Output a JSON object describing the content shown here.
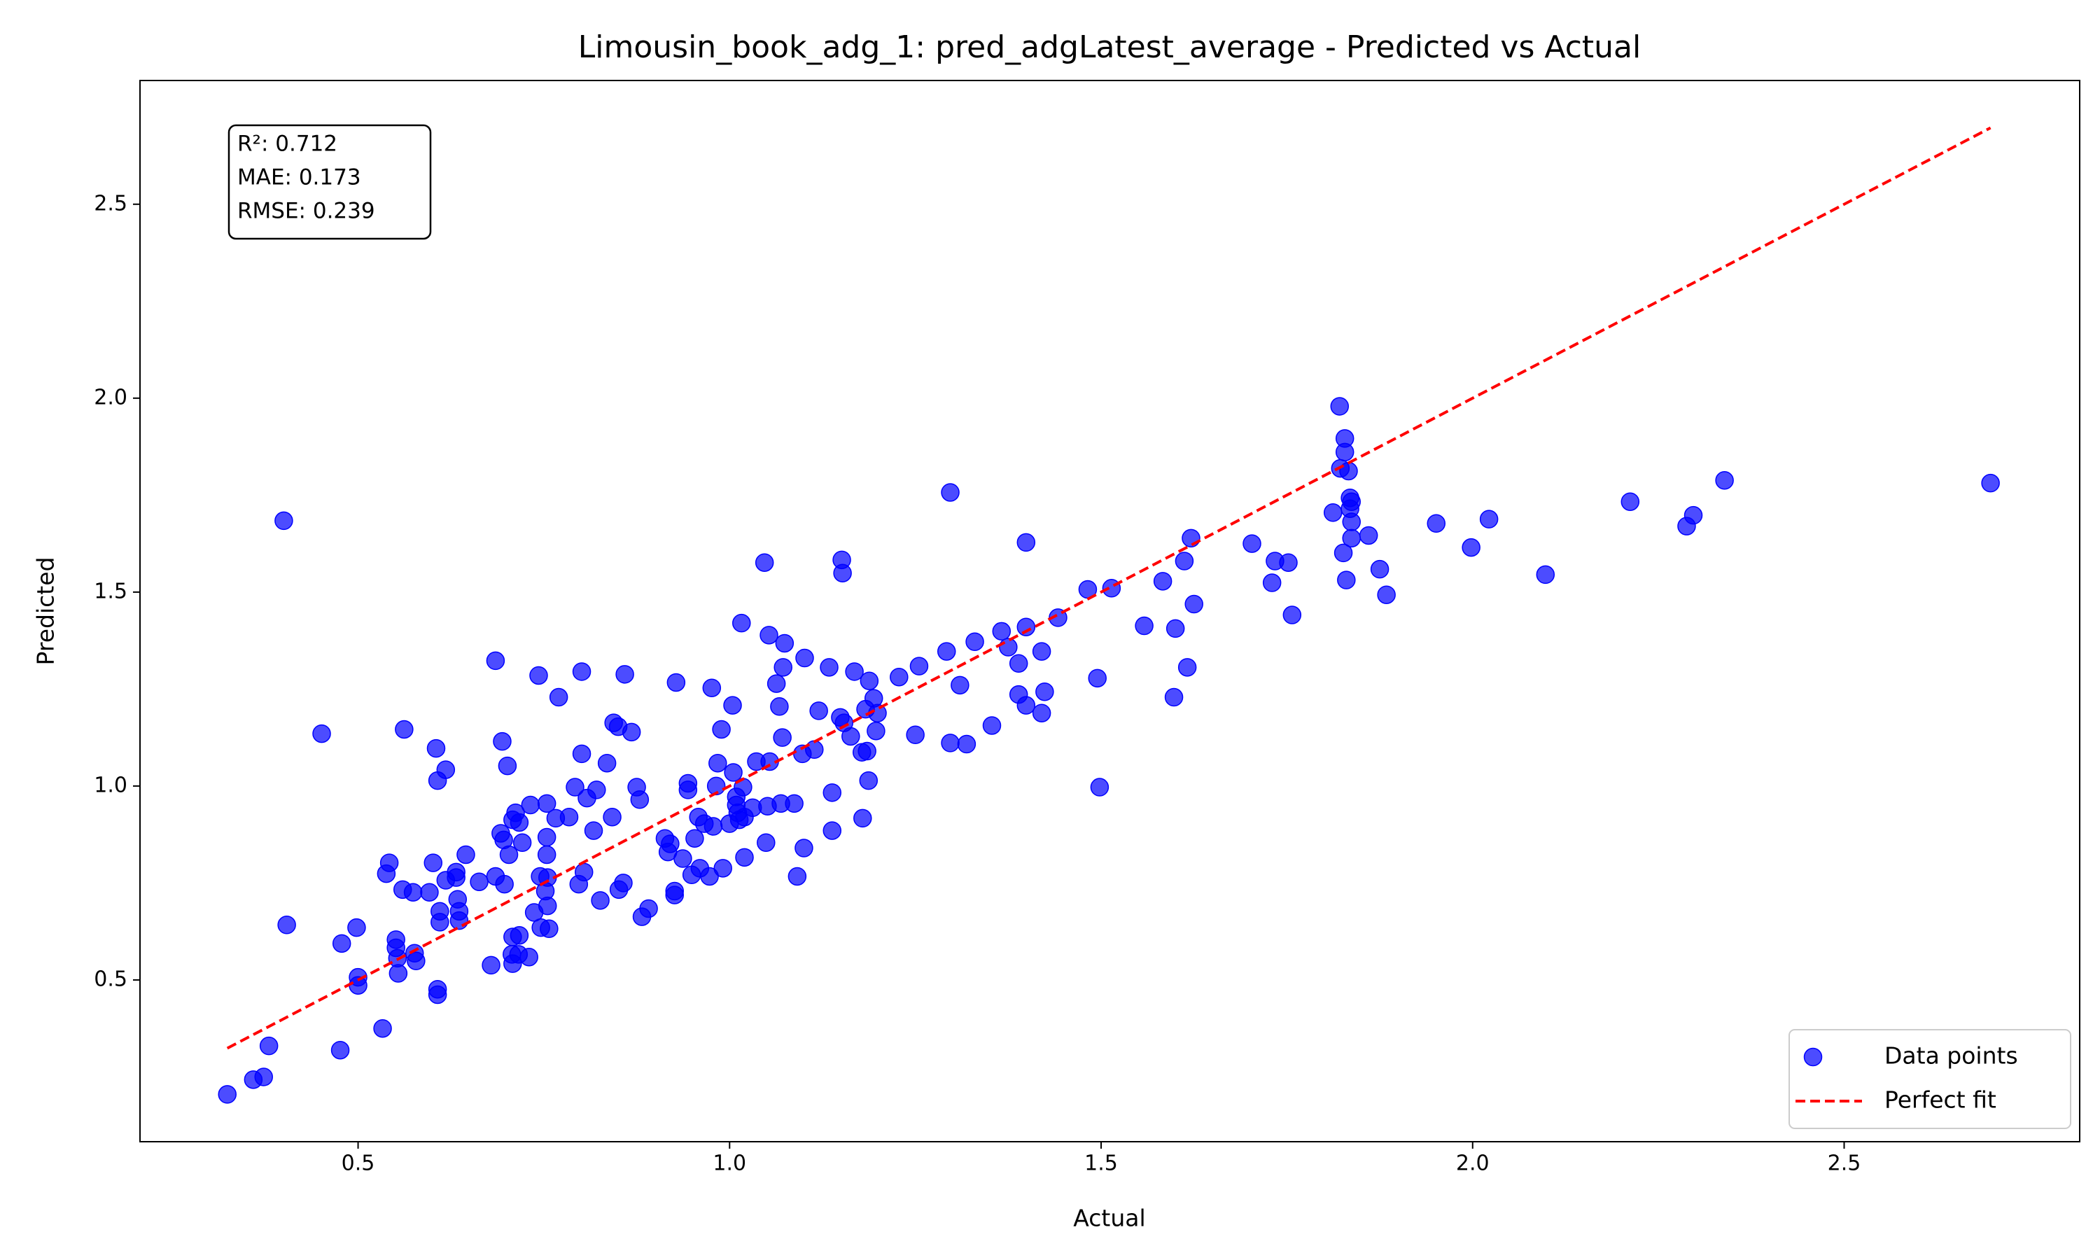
{
  "chart_data": {
    "type": "scatter",
    "title": "Limousin_book_adg_1: pred_adgLatest_average - Predicted vs Actual",
    "xlabel": "Actual",
    "ylabel": "Predicted",
    "annotations": [
      "R²: 0.712",
      "MAE: 0.173",
      "RMSE: 0.239"
    ],
    "xlim": [
      0.2065,
      2.817
    ],
    "ylim": [
      0.083,
      2.819
    ],
    "xticks": [
      0.5,
      {
        "value": 1,
        "label": "1.0"
      },
      1.5,
      {
        "value": 2,
        "label": "2.0"
      },
      2.5
    ],
    "yticks": [
      0.5,
      {
        "value": 1,
        "label": "1.0"
      },
      1.5,
      {
        "value": 2,
        "label": "2.0"
      },
      2.5
    ],
    "grid": false,
    "legend": "lower right",
    "series": [
      {
        "name": "Data points",
        "type": "scatter",
        "color": "#0000ff",
        "x": [
          0.324,
          0.359,
          0.373,
          0.38,
          0.4,
          0.404,
          0.451,
          0.476,
          0.478,
          0.498,
          0.5,
          0.5,
          0.533,
          0.538,
          0.542,
          0.551,
          0.551,
          0.553,
          0.554,
          0.56,
          0.562,
          0.574,
          0.576,
          0.578,
          0.596,
          0.601,
          0.605,
          0.607,
          0.607,
          0.607,
          0.61,
          0.61,
          0.618,
          0.618,
          0.632,
          0.632,
          0.634,
          0.636,
          0.636,
          0.645,
          0.663,
          0.679,
          0.685,
          0.685,
          0.692,
          0.694,
          0.696,
          0.697,
          0.701,
          0.703,
          0.707,
          0.708,
          0.708,
          0.708,
          0.712,
          0.716,
          0.717,
          0.717,
          0.721,
          0.73,
          0.732,
          0.737,
          0.743,
          0.745,
          0.746,
          0.752,
          0.754,
          0.754,
          0.754,
          0.755,
          0.755,
          0.757,
          0.766,
          0.77,
          0.784,
          0.792,
          0.797,
          0.801,
          0.801,
          0.804,
          0.808,
          0.817,
          0.821,
          0.826,
          0.835,
          0.842,
          0.844,
          0.85,
          0.851,
          0.857,
          0.859,
          0.868,
          0.875,
          0.879,
          0.882,
          0.891,
          0.913,
          0.917,
          0.92,
          0.926,
          0.926,
          0.928,
          0.937,
          0.944,
          0.944,
          0.949,
          0.953,
          0.958,
          0.96,
          0.966,
          0.973,
          0.976,
          0.978,
          0.982,
          0.984,
          0.989,
          0.991,
          1.0,
          1.004,
          1.005,
          1.009,
          1.009,
          1.011,
          1.013,
          1.016,
          1.018,
          1.02,
          1.02,
          1.031,
          1.036,
          1.047,
          1.049,
          1.051,
          1.053,
          1.054,
          1.063,
          1.067,
          1.069,
          1.071,
          1.072,
          1.074,
          1.087,
          1.091,
          1.098,
          1.1,
          1.101,
          1.114,
          1.12,
          1.134,
          1.138,
          1.138,
          1.149,
          1.151,
          1.152,
          1.154,
          1.163,
          1.168,
          1.178,
          1.179,
          1.183,
          1.185,
          1.187,
          1.188,
          1.194,
          1.197,
          1.199,
          1.228,
          1.25,
          1.255,
          1.292,
          1.297,
          1.297,
          1.31,
          1.319,
          1.33,
          1.353,
          1.366,
          1.375,
          1.389,
          1.389,
          1.399,
          1.399,
          1.399,
          1.42,
          1.42,
          1.424,
          1.442,
          1.482,
          1.495,
          1.498,
          1.514,
          1.558,
          1.583,
          1.598,
          1.6,
          1.612,
          1.616,
          1.621,
          1.625,
          1.703,
          1.73,
          1.734,
          1.752,
          1.757,
          1.812,
          1.821,
          1.822,
          1.826,
          1.828,
          1.828,
          1.83,
          1.833,
          1.835,
          1.835,
          1.837,
          1.837,
          1.837,
          1.86,
          1.875,
          1.884,
          1.951,
          1.998,
          2.022,
          2.098,
          2.212,
          2.288,
          2.297,
          2.339,
          2.697
        ],
        "values": [
          0.205,
          0.243,
          0.25,
          0.33,
          1.684,
          0.642,
          1.135,
          0.319,
          0.594,
          0.635,
          0.507,
          0.486,
          0.375,
          0.774,
          0.802,
          0.604,
          0.583,
          0.556,
          0.517,
          0.733,
          1.146,
          0.726,
          0.569,
          0.549,
          0.726,
          0.802,
          1.097,
          1.014,
          0.476,
          0.462,
          0.677,
          0.649,
          1.042,
          0.757,
          0.778,
          0.764,
          0.708,
          0.677,
          0.653,
          0.823,
          0.753,
          0.538,
          1.323,
          0.767,
          0.878,
          1.115,
          0.861,
          0.747,
          1.052,
          0.823,
          0.566,
          0.913,
          0.611,
          0.542,
          0.931,
          0.566,
          0.906,
          0.615,
          0.854,
          0.559,
          0.951,
          0.674,
          1.285,
          0.767,
          0.635,
          0.729,
          0.955,
          0.868,
          0.823,
          0.764,
          0.691,
          0.632,
          0.917,
          1.229,
          0.92,
          0.997,
          0.747,
          1.295,
          1.083,
          0.778,
          0.969,
          0.885,
          0.99,
          0.705,
          1.059,
          0.92,
          1.163,
          1.153,
          0.733,
          0.75,
          1.288,
          1.139,
          0.997,
          0.965,
          0.663,
          0.684,
          0.865,
          0.83,
          0.851,
          0.729,
          0.719,
          1.267,
          0.813,
          1.007,
          0.99,
          0.771,
          0.865,
          0.92,
          0.788,
          0.903,
          0.767,
          1.253,
          0.896,
          1.0,
          1.059,
          1.146,
          0.788,
          0.903,
          1.208,
          1.035,
          0.951,
          0.972,
          0.931,
          0.913,
          1.42,
          0.997,
          0.92,
          0.816,
          0.944,
          1.063,
          1.576,
          0.854,
          0.948,
          1.389,
          1.063,
          1.264,
          1.205,
          0.955,
          1.125,
          1.306,
          1.368,
          0.955,
          0.767,
          1.083,
          0.84,
          1.33,
          1.094,
          1.194,
          1.306,
          0.983,
          0.885,
          1.177,
          1.583,
          1.549,
          1.163,
          1.128,
          1.295,
          1.087,
          0.917,
          1.198,
          1.09,
          1.014,
          1.271,
          1.226,
          1.142,
          1.188,
          1.281,
          1.132,
          1.309,
          1.347,
          1.757,
          1.111,
          1.26,
          1.108,
          1.372,
          1.156,
          1.399,
          1.358,
          1.316,
          1.236,
          1.628,
          1.41,
          1.208,
          1.347,
          1.188,
          1.243,
          1.434,
          1.507,
          1.278,
          0.997,
          1.51,
          1.413,
          1.528,
          1.229,
          1.406,
          1.58,
          1.306,
          1.639,
          1.469,
          1.625,
          1.524,
          1.58,
          1.576,
          1.441,
          1.705,
          1.979,
          1.819,
          1.601,
          1.896,
          1.861,
          1.531,
          1.812,
          1.743,
          1.715,
          1.733,
          1.681,
          1.639,
          1.646,
          1.559,
          1.493,
          1.677,
          1.615,
          1.688,
          1.545,
          1.733,
          1.67,
          1.698,
          1.788,
          1.781
        ]
      },
      {
        "name": "Perfect fit",
        "type": "line",
        "style": "dashed",
        "color": "#ff0000",
        "x": [
          0.324,
          2.697
        ],
        "values": [
          0.324,
          2.697
        ]
      }
    ]
  }
}
